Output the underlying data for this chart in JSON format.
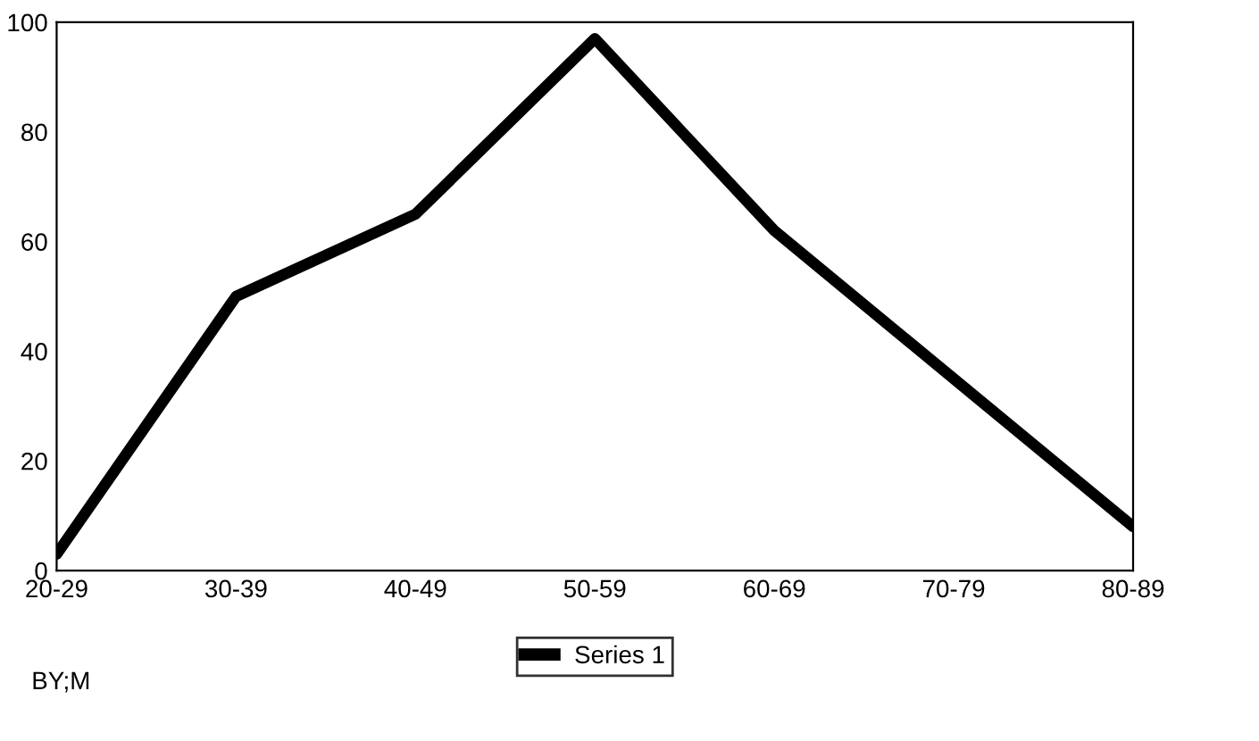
{
  "chart_data": {
    "type": "line",
    "categories": [
      "20-29",
      "30-39",
      "40-49",
      "50-59",
      "60-69",
      "70-79",
      "80-89"
    ],
    "series": [
      {
        "name": "Series 1",
        "color": "#000000",
        "values": [
          3,
          50,
          65,
          97,
          62,
          35,
          8
        ]
      }
    ],
    "ylim": [
      0,
      100
    ],
    "yticks": [
      0,
      20,
      40,
      60,
      80,
      100
    ],
    "legend": "bottom",
    "marker": "none",
    "line_style": "solid",
    "annotations": [
      "BY;M"
    ]
  }
}
